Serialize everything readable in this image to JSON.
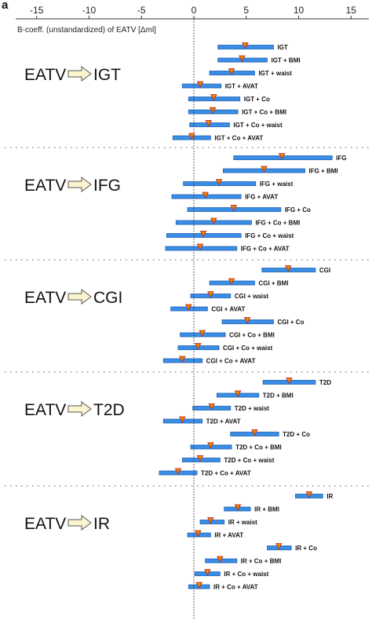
{
  "chart_data": {
    "type": "forest",
    "panel_label": "a",
    "xlabel": "B-coeff. (unstandardized) of EATV [Δml]",
    "xlim": [
      -17,
      17
    ],
    "xticks": [
      -15,
      -10,
      -5,
      0,
      5,
      10,
      15
    ],
    "xtick_labels": [
      "-15",
      "-10",
      "-5",
      "0",
      "5",
      "10",
      "15"
    ],
    "reference_line": 0,
    "colors": {
      "bar": "#3a8ee6",
      "bar_edge": "#1f5fae",
      "marker": "#e68a00",
      "marker_edge": "#c01818"
    },
    "groups": [
      {
        "exposure": "EATV",
        "outcome": "IGT",
        "rows": [
          {
            "label": "IGT",
            "estimate": 4.9,
            "low": 2.3,
            "high": 7.6
          },
          {
            "label": "IGT + BMI",
            "estimate": 4.6,
            "low": 2.3,
            "high": 7.0
          },
          {
            "label": "IGT + waist",
            "estimate": 3.6,
            "low": 1.5,
            "high": 5.8
          },
          {
            "label": "IGT + AVAT",
            "estimate": 0.6,
            "low": -1.1,
            "high": 2.6
          },
          {
            "label": "IGT + Co",
            "estimate": 1.9,
            "low": -0.5,
            "high": 4.4
          },
          {
            "label": "IGT + Co + BMI",
            "estimate": 1.8,
            "low": -0.5,
            "high": 4.2
          },
          {
            "label": "IGT + Co + waist",
            "estimate": 1.4,
            "low": -0.4,
            "high": 3.4
          },
          {
            "label": "IGT + Co + AVAT",
            "estimate": -0.2,
            "low": -2.0,
            "high": 1.6
          }
        ]
      },
      {
        "exposure": "EATV",
        "outcome": "IFG",
        "rows": [
          {
            "label": "IFG",
            "estimate": 8.4,
            "low": 3.8,
            "high": 13.2
          },
          {
            "label": "IFG + BMI",
            "estimate": 6.7,
            "low": 2.8,
            "high": 10.6
          },
          {
            "label": "IFG + waist",
            "estimate": 2.4,
            "low": -1.0,
            "high": 5.9
          },
          {
            "label": "IFG + AVAT",
            "estimate": 1.1,
            "low": -2.1,
            "high": 4.5
          },
          {
            "label": "IFG + Co",
            "estimate": 3.8,
            "low": -0.6,
            "high": 8.3
          },
          {
            "label": "IFG + Co + BMI",
            "estimate": 1.9,
            "low": -1.7,
            "high": 5.5
          },
          {
            "label": "IFG + Co + waist",
            "estimate": 0.9,
            "low": -2.6,
            "high": 4.5
          },
          {
            "label": "IFG + Co + AVAT",
            "estimate": 0.6,
            "low": -2.7,
            "high": 4.1
          }
        ]
      },
      {
        "exposure": "EATV",
        "outcome": "CGI",
        "rows": [
          {
            "label": "CGI",
            "estimate": 9.0,
            "low": 6.5,
            "high": 11.6
          },
          {
            "label": "CGI + BMI",
            "estimate": 3.6,
            "low": 1.5,
            "high": 5.8
          },
          {
            "label": "CGI + waist",
            "estimate": 1.6,
            "low": -0.3,
            "high": 3.5
          },
          {
            "label": "CGI + AVAT",
            "estimate": -0.5,
            "low": -2.2,
            "high": 1.3
          },
          {
            "label": "CGI + Co",
            "estimate": 5.1,
            "low": 2.7,
            "high": 7.6
          },
          {
            "label": "CGI + Co + BMI",
            "estimate": 0.8,
            "low": -1.3,
            "high": 3.0
          },
          {
            "label": "CGI + Co + waist",
            "estimate": 0.4,
            "low": -1.5,
            "high": 2.4
          },
          {
            "label": "CGI + Co + AVAT",
            "estimate": -1.1,
            "low": -2.9,
            "high": 0.8
          }
        ]
      },
      {
        "exposure": "EATV",
        "outcome": "T2D",
        "rows": [
          {
            "label": "T2D",
            "estimate": 9.1,
            "low": 6.6,
            "high": 11.6
          },
          {
            "label": "T2D + BMI",
            "estimate": 4.2,
            "low": 2.2,
            "high": 6.2
          },
          {
            "label": "T2D + waist",
            "estimate": 1.7,
            "low": -0.1,
            "high": 3.5
          },
          {
            "label": "T2D + AVAT",
            "estimate": -1.1,
            "low": -2.9,
            "high": 0.8
          },
          {
            "label": "T2D + Co",
            "estimate": 5.8,
            "low": 3.5,
            "high": 8.1
          },
          {
            "label": "T2D + Co + BMI",
            "estimate": 1.6,
            "low": -0.3,
            "high": 3.6
          },
          {
            "label": "T2D + Co + waist",
            "estimate": 0.6,
            "low": -1.1,
            "high": 2.5
          },
          {
            "label": "T2D + Co + AVAT",
            "estimate": -1.5,
            "low": -3.3,
            "high": 0.3
          }
        ]
      },
      {
        "exposure": "EATV",
        "outcome": "IR",
        "rows": [
          {
            "label": "IR",
            "estimate": 11.0,
            "low": 9.7,
            "high": 12.3
          },
          {
            "label": "IR + BMI",
            "estimate": 4.2,
            "low": 2.9,
            "high": 5.4
          },
          {
            "label": "IR + waist",
            "estimate": 1.6,
            "low": 0.6,
            "high": 2.9
          },
          {
            "label": "IR + AVAT",
            "estimate": 0.4,
            "low": -0.6,
            "high": 1.6
          },
          {
            "label": "IR + Co",
            "estimate": 8.1,
            "low": 7.0,
            "high": 9.3
          },
          {
            "label": "IR + Co + BMI",
            "estimate": 2.5,
            "low": 1.1,
            "high": 4.1
          },
          {
            "label": "IR + Co + waist",
            "estimate": 1.3,
            "low": 0.1,
            "high": 2.5
          },
          {
            "label": "IR + Co + AVAT",
            "estimate": 0.5,
            "low": -0.5,
            "high": 1.5
          }
        ]
      }
    ]
  }
}
